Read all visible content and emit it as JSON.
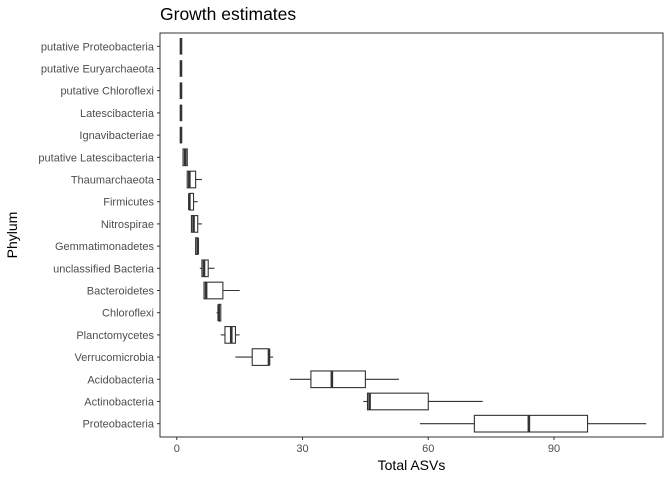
{
  "chart_data": {
    "type": "boxplot",
    "title": "Growth estimates",
    "xlabel": "Total ASVs",
    "ylabel": "Phylum",
    "xlim": [
      -4,
      116
    ],
    "x_ticks": [
      0,
      30,
      60,
      90
    ],
    "grid": false,
    "legend": "none",
    "categories": [
      "Proteobacteria",
      "Actinobacteria",
      "Acidobacteria",
      "Verrucomicrobia",
      "Planctomycetes",
      "Chloroflexi",
      "Bacteroidetes",
      "unclassified Bacteria",
      "Gemmatimonadetes",
      "Nitrospirae",
      "Firmicutes",
      "Thaumarchaeota",
      "putative Latescibacteria",
      "Ignavibacteriae",
      "Latescibacteria",
      "putative Chloroflexi",
      "putative Euryarchaeota",
      "putative Proteobacteria"
    ],
    "boxes": [
      {
        "min": 58,
        "q1": 71,
        "median": 84,
        "q3": 98,
        "max": 112
      },
      {
        "min": 44.5,
        "q1": 45.5,
        "median": 46,
        "q3": 60,
        "max": 73
      },
      {
        "min": 27,
        "q1": 32,
        "median": 37,
        "q3": 45,
        "max": 53
      },
      {
        "min": 14,
        "q1": 18,
        "median": 22,
        "q3": 22,
        "max": 23
      },
      {
        "min": 10.5,
        "q1": 11.5,
        "median": 13,
        "q3": 14,
        "max": 15
      },
      {
        "min": 9.5,
        "q1": 10,
        "median": 10,
        "q3": 10.5,
        "max": 10.5
      },
      {
        "min": 6.5,
        "q1": 6.5,
        "median": 7,
        "q3": 11,
        "max": 15
      },
      {
        "min": 5.5,
        "q1": 6,
        "median": 6.5,
        "q3": 7.5,
        "max": 9
      },
      {
        "min": 4.5,
        "q1": 4.5,
        "median": 5,
        "q3": 5,
        "max": 5
      },
      {
        "min": 3.5,
        "q1": 3.5,
        "median": 4,
        "q3": 5,
        "max": 6
      },
      {
        "min": 3,
        "q1": 3,
        "median": 3,
        "q3": 4,
        "max": 5
      },
      {
        "min": 2.5,
        "q1": 2.5,
        "median": 3,
        "q3": 4.5,
        "max": 6
      },
      {
        "min": 1.5,
        "q1": 1.5,
        "median": 2,
        "q3": 2.5,
        "max": 2.5
      },
      {
        "min": 1,
        "q1": 1,
        "median": 1,
        "q3": 1,
        "max": 1
      },
      {
        "min": 1,
        "q1": 1,
        "median": 1,
        "q3": 1,
        "max": 1
      },
      {
        "min": 1,
        "q1": 1,
        "median": 1,
        "q3": 1,
        "max": 1
      },
      {
        "min": 1,
        "q1": 1,
        "median": 1,
        "q3": 1,
        "max": 1
      },
      {
        "min": 1,
        "q1": 1,
        "median": 1,
        "q3": 1,
        "max": 1
      }
    ],
    "colors": {
      "box_stroke": "#333333",
      "box_fill": "#ffffff",
      "panel_border": "#333333",
      "tick_text": "#4d4d4d"
    }
  }
}
